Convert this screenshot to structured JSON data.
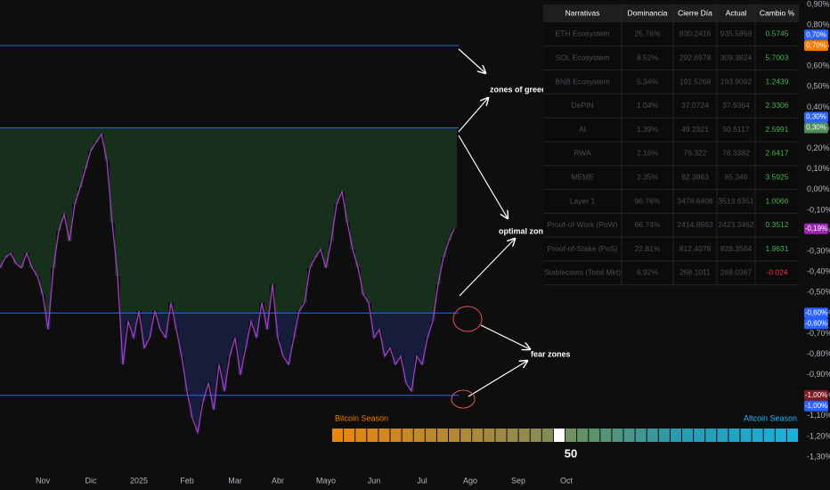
{
  "chart_data": {
    "type": "line",
    "categories": [
      null,
      null,
      null,
      null,
      null,
      null,
      null,
      null,
      "Nov",
      null,
      null,
      null,
      null,
      null,
      null,
      null,
      null,
      "Dic",
      null,
      null,
      null,
      null,
      null,
      null,
      null,
      null,
      "2025",
      null,
      null,
      null,
      null,
      null,
      null,
      null,
      null,
      "Feb",
      null,
      null,
      null,
      null,
      null,
      null,
      null,
      null,
      "Mar",
      null,
      null,
      null,
      null,
      null,
      null,
      null,
      "Abr",
      null,
      null,
      null,
      null,
      null,
      null,
      null,
      null,
      "Mayo",
      null,
      null,
      null,
      null,
      null,
      null,
      null,
      null,
      "Jun",
      null,
      null,
      null,
      null,
      null,
      null,
      null,
      null,
      "Jul",
      null,
      null,
      null,
      null,
      null,
      null,
      null,
      null,
      "Ago",
      null,
      null,
      null,
      null,
      null,
      null,
      null,
      null,
      "Sep",
      null,
      null,
      null,
      null,
      null,
      null,
      null,
      null,
      "Oct",
      null,
      null,
      null,
      null,
      null,
      null,
      null,
      null,
      null,
      null,
      null,
      null,
      null,
      null,
      null,
      null,
      null,
      null,
      null,
      null,
      null,
      null,
      null,
      null,
      null,
      null,
      null,
      null,
      null,
      null,
      null,
      null,
      null,
      null,
      null,
      null,
      null,
      null,
      null,
      null,
      null,
      null,
      null
    ],
    "values": [
      -0.38,
      -0.33,
      -0.31,
      -0.36,
      -0.38,
      -0.31,
      -0.38,
      -0.42,
      -0.51,
      -0.68,
      -0.38,
      -0.2,
      -0.12,
      -0.25,
      -0.07,
      0.01,
      0.1,
      0.19,
      0.23,
      0.27,
      0.14,
      -0.16,
      -0.42,
      -0.85,
      -0.64,
      -0.72,
      -0.59,
      -0.77,
      -0.72,
      -0.59,
      -0.68,
      -0.72,
      -0.55,
      -0.68,
      -0.81,
      -0.98,
      -1.11,
      -1.18,
      -1.03,
      -0.94,
      -1.07,
      -0.85,
      -0.98,
      -0.81,
      -0.72,
      -0.9,
      -0.77,
      -0.64,
      -0.72,
      -0.55,
      -0.68,
      -0.46,
      -0.72,
      -0.81,
      -0.85,
      -0.72,
      -0.59,
      -0.55,
      -0.38,
      -0.33,
      -0.29,
      -0.38,
      -0.25,
      -0.07,
      -0.01,
      -0.16,
      -0.29,
      -0.38,
      -0.51,
      -0.55,
      -0.72,
      -0.68,
      -0.81,
      -0.77,
      -0.85,
      -0.81,
      -0.94,
      -0.98,
      -0.81,
      -0.85,
      -0.72,
      -0.64,
      -0.46,
      -0.33,
      -0.25,
      -0.19,
      null,
      null,
      null,
      null,
      null,
      null,
      null,
      null,
      null,
      null,
      null,
      null,
      null,
      null,
      null,
      null,
      null,
      null,
      null,
      null,
      null,
      null,
      null,
      null,
      null,
      null,
      null,
      null,
      null,
      null,
      null,
      null,
      null,
      null,
      null,
      null,
      null,
      null,
      null,
      null,
      null,
      null,
      null,
      null,
      null,
      null,
      null,
      null,
      null,
      null,
      null,
      null,
      null,
      null,
      null,
      null,
      null,
      null,
      null,
      null,
      null,
      null,
      null,
      null
    ],
    "color": "#a53cc4",
    "ylim": [
      -1.3,
      0.9
    ],
    "yticks": [
      {
        "value": 0.9,
        "label": "0,90%"
      },
      {
        "value": 0.8,
        "label": "0,80%"
      },
      {
        "value": 0.7,
        "label": "0,70%"
      },
      {
        "value": 0.6,
        "label": "0,60%"
      },
      {
        "value": 0.5,
        "label": "0,50%"
      },
      {
        "value": 0.4,
        "label": "0,40%"
      },
      {
        "value": 0.3,
        "label": "0,30%"
      },
      {
        "value": 0.2,
        "label": "0,20%"
      },
      {
        "value": 0.1,
        "label": "0,10%"
      },
      {
        "value": 0,
        "label": "0,00%"
      },
      {
        "value": -0.1,
        "label": "-0,10%"
      },
      {
        "value": -0.2,
        "label": "-0,20%"
      },
      {
        "value": -0.3,
        "label": "-0,30%"
      },
      {
        "value": -0.4,
        "label": "-0,40%"
      },
      {
        "value": -0.5,
        "label": "-0,50%"
      },
      {
        "value": -0.6,
        "label": "-0,60%"
      },
      {
        "value": -0.7,
        "label": "-0,70%"
      },
      {
        "value": -0.8,
        "label": "-0,80%"
      },
      {
        "value": -0.9,
        "label": "-0,90%"
      },
      {
        "value": -1.0,
        "label": "-1,00%"
      },
      {
        "value": -1.1,
        "label": "-1,10%"
      },
      {
        "value": -1.2,
        "label": "-1,20%"
      },
      {
        "value": -1.3,
        "label": "-1,30%"
      }
    ],
    "grid": false,
    "levels": [
      0.7,
      0.3,
      -0.6,
      -1.0
    ],
    "level_color": "#2962ff",
    "zone_colors": {
      "optimal": "#16301b",
      "fear": "#161d3a"
    },
    "price_labels": [
      {
        "value": 0.7,
        "label": "0,70%",
        "color": "#2962ff"
      },
      {
        "value": 0.7,
        "label": "0,70%",
        "color": "#f57c00"
      },
      {
        "value": 0.3,
        "label": "0,30%",
        "color": "#2962ff"
      },
      {
        "value": 0.3,
        "label": "0,30%",
        "color": "#4e8b57"
      },
      {
        "value": -0.19,
        "label": "-0,19%",
        "color": "#9c27b0"
      },
      {
        "value": -0.6,
        "label": "-0,60%",
        "color": "#2962ff"
      },
      {
        "value": -0.6,
        "label": "-0,60%",
        "color": "#2962ff"
      },
      {
        "value": -1.0,
        "label": "-1,00%",
        "color": "#801922"
      },
      {
        "value": -1.0,
        "label": "-1,00%",
        "color": "#2962ff"
      }
    ],
    "annotations": [
      "zones of greed",
      "optimal zones",
      "fear zones"
    ]
  },
  "table": {
    "columns": [
      "Narrativas",
      "Dominancia",
      "Cierre Día",
      "Actual",
      "Cambio %"
    ],
    "rows": [
      [
        "ETH Ecosystem",
        "25.76%",
        "930.2416",
        "935.5859",
        "0.5745"
      ],
      [
        "SOL Ecosystem",
        "8.52%",
        "292.6978",
        "309.3824",
        "5.7003"
      ],
      [
        "BNB Ecosystem",
        "5.34%",
        "191.5268",
        "193.9092",
        "1.2439"
      ],
      [
        "DePIN",
        "1.04%",
        "37.0724",
        "37.9364",
        "2.3306"
      ],
      [
        "AI",
        "1.39%",
        "49.2321",
        "50.5117",
        "2.5991"
      ],
      [
        "RWA",
        "2.16%",
        "76.322",
        "78.3382",
        "2.6417"
      ],
      [
        "MEME",
        "2.35%",
        "82.3863",
        "85.346",
        "3.5925"
      ],
      [
        "Layer 1",
        "96.76%",
        "3478.6408",
        "3513.6351",
        "1.0066"
      ],
      [
        "Proof-of-Work (PoW)",
        "66.74%",
        "2414.8663",
        "2423.3462",
        "0.3512"
      ],
      [
        "Proof-of-Stake (PoS)",
        "22.81%",
        "812.4078",
        "828.3564",
        "1.9631"
      ],
      [
        "Stablecoins (Total Mkt)",
        "6.92%",
        "268.1011",
        "268.0367",
        "-0.024"
      ]
    ]
  },
  "gauge": {
    "left_label": "Bitcoin Season",
    "right_label": "Altcoin Season",
    "value": 50,
    "range": [
      0,
      100
    ]
  }
}
